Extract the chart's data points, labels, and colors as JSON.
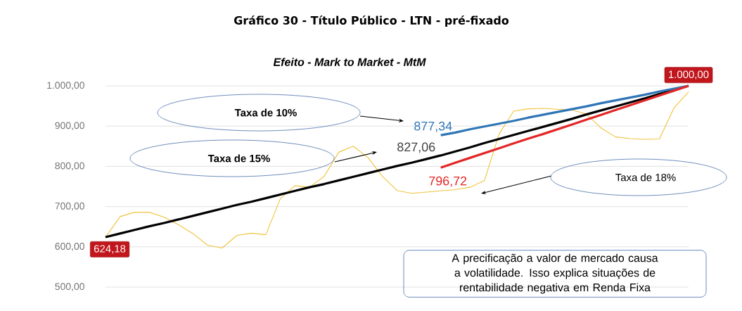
{
  "chart_data": {
    "type": "line",
    "title": "Gráfico 30 - Título Público - LTN - pré-fixado",
    "subtitle": "Efeito - Mark to Market - MtM",
    "categories": [
      null,
      null,
      null,
      null,
      null,
      null,
      null,
      null,
      null,
      null,
      null,
      null,
      null,
      null,
      null,
      null,
      null,
      null,
      null,
      null,
      null,
      null,
      null,
      null,
      null,
      null,
      null,
      null,
      null,
      null,
      null,
      null,
      null,
      null,
      null,
      null,
      null,
      null,
      null,
      null,
      null
    ],
    "series": [
      {
        "color": "#f0c23c",
        "values": [
          624,
          675,
          686,
          686,
          674,
          655,
          633,
          604,
          597,
          628,
          634,
          630,
          720,
          752,
          748,
          775,
          835,
          850,
          822,
          775,
          740,
          733,
          736,
          739,
          742,
          748,
          765,
          880,
          937,
          943,
          944,
          942,
          940,
          930,
          895,
          873,
          869,
          867,
          868,
          945,
          985
        ]
      },
      {
        "color": "#000000",
        "values": [
          624.18,
          633,
          642,
          651,
          659,
          668,
          677,
          686,
          695,
          704,
          712,
          721,
          730,
          739,
          748,
          756,
          765,
          774,
          783,
          792,
          801,
          809,
          818,
          827.06,
          837,
          847,
          858,
          868,
          878,
          888,
          898,
          908,
          918,
          929,
          939,
          949,
          959,
          969,
          980,
          990,
          1000
        ],
        "value_labels": [
          "624,18",
          null,
          null,
          null,
          null,
          null,
          null,
          null,
          null,
          null,
          null,
          null,
          null,
          null,
          null,
          null,
          null,
          null,
          null,
          null,
          null,
          null,
          null,
          "827,06",
          null,
          null,
          null,
          null,
          null,
          null,
          null,
          null,
          null,
          null,
          null,
          null,
          null,
          null,
          null,
          null,
          "1.000,00"
        ]
      },
      {
        "color": "#2e75b6",
        "values": [
          null,
          null,
          null,
          null,
          null,
          null,
          null,
          null,
          null,
          null,
          null,
          null,
          null,
          null,
          null,
          null,
          null,
          null,
          null,
          null,
          null,
          null,
          null,
          877.34,
          884,
          892,
          899,
          906,
          913,
          921,
          928,
          935,
          942,
          949,
          957,
          964,
          971,
          978,
          986,
          993,
          1000
        ],
        "value_labels": [
          null,
          null,
          null,
          null,
          null,
          null,
          null,
          null,
          null,
          null,
          null,
          null,
          null,
          null,
          null,
          null,
          null,
          null,
          null,
          null,
          null,
          null,
          null,
          "877,34",
          null,
          null,
          null,
          null,
          null,
          null,
          null,
          null,
          null,
          null,
          null,
          null,
          null,
          null,
          null,
          null,
          null
        ]
      },
      {
        "color": "#e32626",
        "values": [
          null,
          null,
          null,
          null,
          null,
          null,
          null,
          null,
          null,
          null,
          null,
          null,
          null,
          null,
          null,
          null,
          null,
          null,
          null,
          null,
          null,
          null,
          null,
          796.72,
          809,
          821,
          833,
          845,
          857,
          869,
          880,
          892,
          904,
          916,
          928,
          940,
          952,
          964,
          976,
          988,
          1000
        ],
        "value_labels": [
          null,
          null,
          null,
          null,
          null,
          null,
          null,
          null,
          null,
          null,
          null,
          null,
          null,
          null,
          null,
          null,
          null,
          null,
          null,
          null,
          null,
          null,
          null,
          "796,72",
          null,
          null,
          null,
          null,
          null,
          null,
          null,
          null,
          null,
          null,
          null,
          null,
          null,
          null,
          null,
          null,
          null
        ]
      }
    ],
    "ylim": [
      500,
      1000
    ],
    "yticks": [
      {
        "value": 500,
        "label": "500,00"
      },
      {
        "value": 600,
        "label": "600,00"
      },
      {
        "value": 700,
        "label": "700,00"
      },
      {
        "value": 800,
        "label": "800,00"
      },
      {
        "value": 900,
        "label": "900,00"
      },
      {
        "value": 1000,
        "label": "1.000,00"
      }
    ],
    "grid": "y",
    "tick_labels": "y",
    "annotations": [
      "Taxa de 10%",
      "Taxa de 15%",
      "Taxa de 18%",
      "A precificação a valor de mercado causa a volatilidade. Isso explica situações de rentabilidade negativa em Renda Fixa"
    ]
  }
}
